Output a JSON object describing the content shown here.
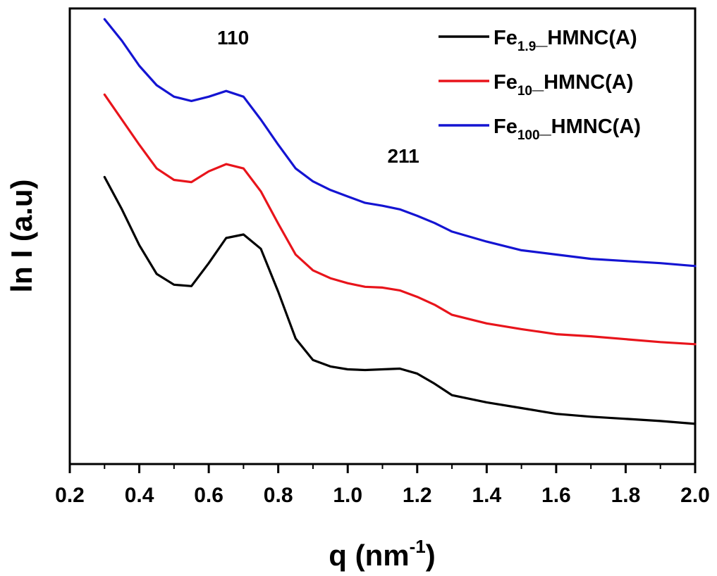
{
  "chart_data": {
    "type": "line",
    "xlabel_main": "q (nm",
    "xlabel_sup": "-1",
    "xlabel_close": ")",
    "ylabel": "ln I (a.u)",
    "xlim": [
      0.2,
      2.0
    ],
    "x_ticks": [
      "0.2",
      "0.4",
      "0.6",
      "0.8",
      "1.0",
      "1.2",
      "1.4",
      "1.6",
      "1.8",
      "2.0"
    ],
    "y_ticks_labeled": false,
    "grid": false,
    "legend_position": "top-right",
    "legend": [
      {
        "prefix": "Fe",
        "sub": "1.9",
        "suffix": "_HMNC(A)",
        "color": "#000000"
      },
      {
        "prefix": "Fe",
        "sub": "10",
        "suffix": "_HMNC(A)",
        "color": "#e8141b"
      },
      {
        "prefix": "Fe",
        "sub": "100",
        "suffix": "_HMNC(A)",
        "color": "#1414d2"
      }
    ],
    "annotations": [
      {
        "text": "110",
        "x": 0.67,
        "y": 5.85
      },
      {
        "text": "211",
        "x": 1.16,
        "y": 4.2
      }
    ],
    "ylim": [
      0,
      6.35
    ],
    "x": [
      0.3,
      0.35,
      0.4,
      0.45,
      0.5,
      0.55,
      0.6,
      0.65,
      0.7,
      0.75,
      0.8,
      0.85,
      0.9,
      0.95,
      1.0,
      1.05,
      1.1,
      1.15,
      1.2,
      1.25,
      1.3,
      1.4,
      1.5,
      1.6,
      1.7,
      1.8,
      1.9,
      2.0
    ],
    "series": [
      {
        "color": "#000000",
        "values": [
          4.0,
          3.55,
          3.05,
          2.65,
          2.5,
          2.48,
          2.8,
          3.15,
          3.2,
          3.0,
          2.4,
          1.75,
          1.45,
          1.36,
          1.32,
          1.31,
          1.32,
          1.33,
          1.26,
          1.12,
          0.96,
          0.86,
          0.78,
          0.7,
          0.66,
          0.63,
          0.6,
          0.56
        ]
      },
      {
        "color": "#e8141b",
        "values": [
          5.15,
          4.8,
          4.45,
          4.12,
          3.96,
          3.93,
          4.08,
          4.18,
          4.12,
          3.8,
          3.35,
          2.92,
          2.7,
          2.59,
          2.52,
          2.47,
          2.46,
          2.42,
          2.33,
          2.22,
          2.08,
          1.96,
          1.88,
          1.81,
          1.78,
          1.74,
          1.7,
          1.67
        ]
      },
      {
        "color": "#1414d2",
        "values": [
          6.2,
          5.9,
          5.55,
          5.28,
          5.12,
          5.06,
          5.12,
          5.2,
          5.12,
          4.8,
          4.45,
          4.12,
          3.94,
          3.82,
          3.73,
          3.64,
          3.6,
          3.55,
          3.46,
          3.36,
          3.24,
          3.1,
          2.98,
          2.92,
          2.86,
          2.83,
          2.8,
          2.76
        ]
      }
    ]
  }
}
